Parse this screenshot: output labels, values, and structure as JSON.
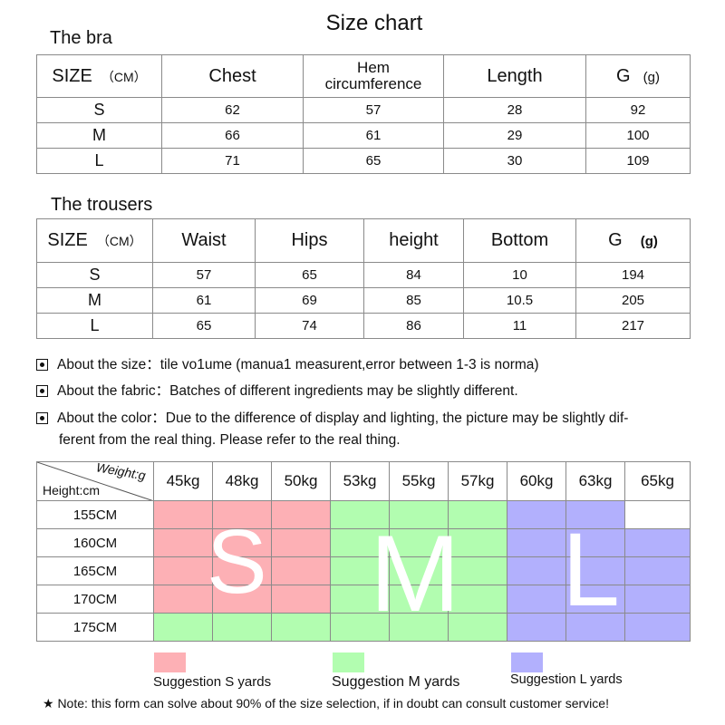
{
  "page_title": "Size chart",
  "bra": {
    "heading": "The bra",
    "size_label": "SIZE",
    "size_unit": "（CM）",
    "columns": [
      "Chest",
      "Hem\ncircumference",
      "Length"
    ],
    "g_label": "G",
    "g_unit": "(g)",
    "rows": [
      {
        "size": "S",
        "values": [
          "62",
          "57",
          "28",
          "92"
        ]
      },
      {
        "size": "M",
        "values": [
          "66",
          "61",
          "29",
          "100"
        ]
      },
      {
        "size": "L",
        "values": [
          "71",
          "65",
          "30",
          "109"
        ]
      }
    ]
  },
  "trousers": {
    "heading": "The trousers",
    "size_label": "SIZE",
    "size_unit": "（CM）",
    "columns": [
      "Waist",
      "Hips",
      "height",
      "Bottom"
    ],
    "g_label": "G",
    "g_unit": "(g)",
    "rows": [
      {
        "size": "S",
        "values": [
          "57",
          "65",
          "84",
          "10",
          "194"
        ]
      },
      {
        "size": "M",
        "values": [
          "61",
          "69",
          "85",
          "10.5",
          "205"
        ]
      },
      {
        "size": "L",
        "values": [
          "65",
          "74",
          "86",
          "11",
          "217"
        ]
      }
    ]
  },
  "notes": [
    "About the size：tile vo1ume (manua1 measurent,error between 1-3 is norma)",
    "About the fabric：Batches of different ingredients may be slightly different.",
    "About the color：Due to the difference of display and lighting, the picture may be slightly dif-",
    "ferent from the real thing. Please refer to the real thing."
  ],
  "grid": {
    "weight_label": "Weight:g",
    "height_label": "Height:cm",
    "weights": [
      "45kg",
      "48kg",
      "50kg",
      "53kg",
      "55kg",
      "57kg",
      "60kg",
      "63kg",
      "65kg"
    ],
    "heights": [
      "155CM",
      "160CM",
      "165CM",
      "170CM",
      "175CM"
    ],
    "cells": [
      [
        "S",
        "S",
        "S",
        "M",
        "M",
        "M",
        "L",
        "L",
        ""
      ],
      [
        "S",
        "S",
        "S",
        "M",
        "M",
        "M",
        "L",
        "L",
        "L"
      ],
      [
        "S",
        "S",
        "S",
        "M",
        "M",
        "M",
        "L",
        "L",
        "L"
      ],
      [
        "S",
        "S",
        "S",
        "M",
        "M",
        "M",
        "L",
        "L",
        "L"
      ],
      [
        "M",
        "M",
        "M",
        "M",
        "M",
        "M",
        "L",
        "L",
        "L"
      ]
    ],
    "colors": {
      "S": "#fdb0b5",
      "M": "#b2fdb0",
      "L": "#b2b0fd",
      "empty": "#ffffff"
    },
    "big_letters": [
      "S",
      "M",
      "L"
    ]
  },
  "legend": [
    {
      "key": "S",
      "label": "Suggestion S yards"
    },
    {
      "key": "M",
      "label": "Suggestion M yards"
    },
    {
      "key": "L",
      "label": "Suggestion L yards"
    }
  ],
  "footer_note": "★ Note: this form can solve about 90% of the size selection, if in doubt can consult customer service!"
}
